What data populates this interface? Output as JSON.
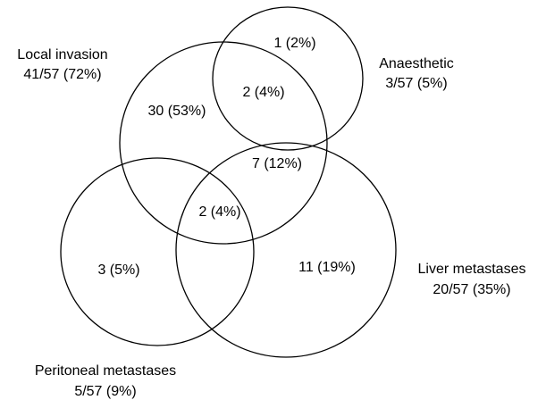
{
  "sets": {
    "local_invasion": {
      "name": "Local invasion",
      "count": "41/57 (72%)"
    },
    "anaesthetic": {
      "name": "Anaesthetic",
      "count": "3/57 (5%)"
    },
    "liver_metastases": {
      "name": "Liver metastases",
      "count": "20/57 (35%)"
    },
    "peritoneal_metastases": {
      "name": "Peritoneal metastases",
      "count": "5/57 (9%)"
    }
  },
  "regions": {
    "anaesthetic_only": "1 (2%)",
    "local_and_anaesthetic": "2 (4%)",
    "local_only": "30 (53%)",
    "local_and_liver": "7 (12%)",
    "local_liver_peritoneal": "2 (4%)",
    "peritoneal_only": "3 (5%)",
    "liver_only": "11 (19%)"
  },
  "colors": {
    "stroke": "#000000",
    "text": "#000000",
    "background": "#ffffff"
  }
}
